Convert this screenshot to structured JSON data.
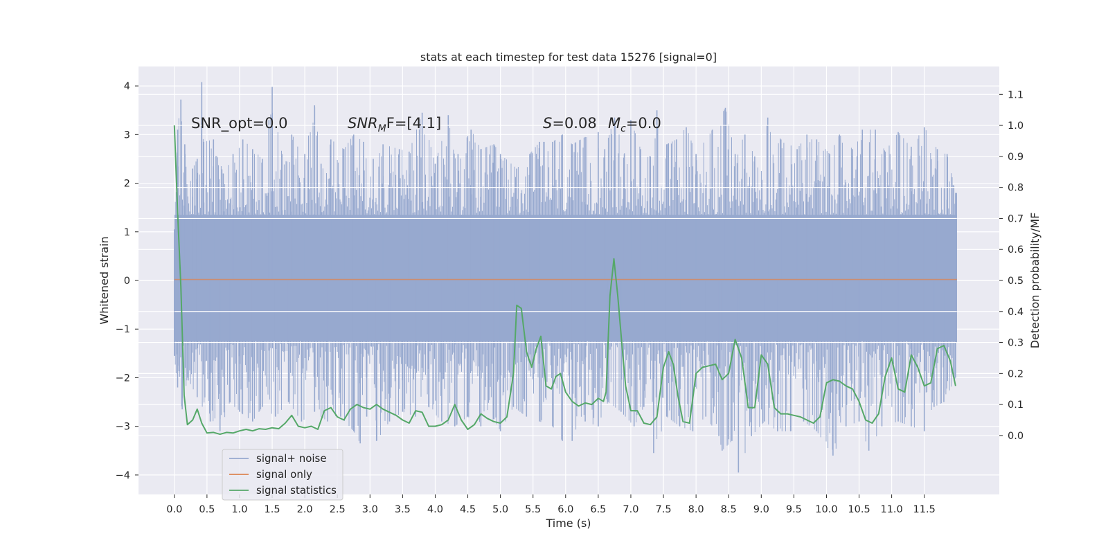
{
  "chart_data": {
    "type": "line",
    "title": "stats at each timestep for test data 15276 [signal=0]",
    "xlabel": "Time (s)",
    "ylabel": "Whitened strain",
    "y2label": "Detection probability/MF",
    "xlim": [
      -0.55,
      12.65
    ],
    "ylim": [
      -4.4,
      4.4
    ],
    "y2lim": [
      -0.19,
      1.19
    ],
    "x_ticks": [
      0.0,
      0.5,
      1.0,
      1.5,
      2.0,
      2.5,
      3.0,
      3.5,
      4.0,
      4.5,
      5.0,
      5.5,
      6.0,
      6.5,
      7.0,
      7.5,
      8.0,
      8.5,
      9.0,
      9.5,
      10.0,
      10.5,
      11.0,
      11.5
    ],
    "x_tick_labels": [
      "0.0",
      "0.5",
      "1.0",
      "1.5",
      "2.0",
      "2.5",
      "3.0",
      "3.5",
      "4.0",
      "4.5",
      "5.0",
      "5.5",
      "6.0",
      "6.5",
      "7.0",
      "7.5",
      "8.0",
      "8.5",
      "9.0",
      "9.5",
      "10.0",
      "10.5",
      "11.0",
      "11.5"
    ],
    "y_ticks": [
      4,
      3,
      2,
      1,
      0,
      -1,
      -2,
      -3,
      -4
    ],
    "y_tick_labels": [
      "4",
      "3",
      "2",
      "1",
      "0",
      "−1",
      "−2",
      "−3",
      "−4"
    ],
    "y2_ticks": [
      1.1,
      1.0,
      0.9,
      0.8,
      0.7,
      0.6,
      0.5,
      0.4,
      0.3,
      0.2,
      0.1,
      0.0
    ],
    "y2_tick_labels": [
      "1.1",
      "1.0",
      "0.9",
      "0.8",
      "0.7",
      "0.6",
      "0.5",
      "0.4",
      "0.3",
      "0.2",
      "0.1",
      "0.0"
    ],
    "colors": {
      "background": "#eaeaf2",
      "grid": "#ffffff",
      "noise": "#97a9cf",
      "signal": "#dd8452",
      "stats": "#55a868"
    },
    "annotations": {
      "snr_opt": "SNR_opt=0.0",
      "snr_mf_base": "SNR",
      "snr_mf_sub": "M",
      "snr_mf_rest": "F=[4.1]",
      "s_label": "S",
      "s_value": "=0.08",
      "mc_base": "M",
      "mc_sub": "c",
      "mc_value": "=0.0"
    },
    "legend": {
      "position": "lower-left",
      "items": [
        "signal+ noise",
        "signal only",
        "signal statistics"
      ]
    },
    "series": [
      {
        "name": "signal+ noise",
        "axis": "left",
        "type": "noise",
        "x_range": [
          0.0,
          12.0
        ],
        "upper_band": 1.35,
        "lower_band": -1.25,
        "upper_spikes": [
          [
            0.0,
            1.05
          ],
          [
            0.05,
            3.1
          ],
          [
            0.1,
            3.72
          ],
          [
            0.16,
            2.8
          ],
          [
            0.28,
            2.3
          ],
          [
            0.35,
            2.5
          ],
          [
            0.42,
            4.08
          ],
          [
            0.45,
            2.85
          ],
          [
            0.6,
            2.9
          ],
          [
            0.75,
            2.2
          ],
          [
            0.9,
            2.6
          ],
          [
            1.05,
            2.9
          ],
          [
            1.2,
            2.7
          ],
          [
            1.35,
            2.5
          ],
          [
            1.45,
            3.3
          ],
          [
            1.5,
            3.98
          ],
          [
            1.65,
            2.6
          ],
          [
            1.8,
            3.0
          ],
          [
            2.0,
            2.6
          ],
          [
            2.15,
            3.6
          ],
          [
            2.25,
            2.4
          ],
          [
            2.4,
            2.9
          ],
          [
            2.6,
            2.7
          ],
          [
            2.75,
            3.0
          ],
          [
            2.9,
            2.85
          ],
          [
            3.05,
            2.5
          ],
          [
            3.2,
            2.8
          ],
          [
            3.45,
            2.7
          ],
          [
            3.6,
            2.65
          ],
          [
            3.8,
            3.45
          ],
          [
            4.0,
            2.4
          ],
          [
            4.2,
            3.4
          ],
          [
            4.35,
            2.6
          ],
          [
            4.55,
            3.1
          ],
          [
            4.7,
            2.7
          ],
          [
            4.9,
            2.8
          ],
          [
            5.0,
            2.6
          ],
          [
            5.25,
            2.3
          ],
          [
            5.45,
            2.6
          ],
          [
            5.6,
            2.85
          ],
          [
            5.8,
            2.85
          ],
          [
            5.95,
            3.0
          ],
          [
            6.1,
            2.8
          ],
          [
            6.3,
            2.95
          ],
          [
            6.5,
            3.05
          ],
          [
            6.6,
            2.7
          ],
          [
            6.75,
            3.35
          ],
          [
            6.9,
            2.6
          ],
          [
            7.0,
            3.3
          ],
          [
            7.15,
            2.7
          ],
          [
            7.3,
            2.55
          ],
          [
            7.4,
            3.5
          ],
          [
            7.55,
            2.8
          ],
          [
            7.7,
            2.9
          ],
          [
            7.85,
            3.15
          ],
          [
            8.0,
            2.6
          ],
          [
            8.25,
            3.1
          ],
          [
            8.45,
            3.55
          ],
          [
            8.6,
            2.6
          ],
          [
            8.75,
            3.0
          ],
          [
            8.9,
            2.55
          ],
          [
            9.1,
            3.35
          ],
          [
            9.3,
            2.9
          ],
          [
            9.55,
            2.7
          ],
          [
            9.7,
            3.0
          ],
          [
            9.85,
            2.9
          ],
          [
            10.05,
            2.6
          ],
          [
            10.2,
            3.0
          ],
          [
            10.4,
            2.7
          ],
          [
            10.55,
            3.1
          ],
          [
            10.75,
            3.1
          ],
          [
            10.9,
            2.65
          ],
          [
            11.1,
            3.05
          ],
          [
            11.3,
            2.75
          ],
          [
            11.5,
            3.15
          ],
          [
            11.7,
            2.7
          ],
          [
            11.85,
            2.6
          ],
          [
            11.98,
            1.8
          ]
        ],
        "lower_spikes": [
          [
            0.0,
            -1.55
          ],
          [
            0.05,
            -2.2
          ],
          [
            0.12,
            -2.65
          ],
          [
            0.2,
            -2.0
          ],
          [
            0.35,
            -2.4
          ],
          [
            0.55,
            -2.9
          ],
          [
            0.7,
            -3.1
          ],
          [
            0.85,
            -2.5
          ],
          [
            1.0,
            -2.7
          ],
          [
            1.2,
            -2.9
          ],
          [
            1.35,
            -2.6
          ],
          [
            1.55,
            -2.8
          ],
          [
            1.75,
            -2.5
          ],
          [
            1.95,
            -2.9
          ],
          [
            2.15,
            -2.7
          ],
          [
            2.35,
            -2.9
          ],
          [
            2.55,
            -2.8
          ],
          [
            2.75,
            -3.1
          ],
          [
            2.85,
            -3.35
          ],
          [
            2.95,
            -2.8
          ],
          [
            3.1,
            -3.3
          ],
          [
            3.3,
            -2.9
          ],
          [
            3.5,
            -2.7
          ],
          [
            3.7,
            -2.8
          ],
          [
            3.9,
            -2.6
          ],
          [
            4.1,
            -2.9
          ],
          [
            4.3,
            -3.0
          ],
          [
            4.5,
            -2.8
          ],
          [
            4.7,
            -3.0
          ],
          [
            4.9,
            -2.85
          ],
          [
            5.0,
            -3.1
          ],
          [
            5.2,
            -2.6
          ],
          [
            5.4,
            -2.8
          ],
          [
            5.6,
            -2.9
          ],
          [
            5.8,
            -3.0
          ],
          [
            5.95,
            -3.3
          ],
          [
            6.1,
            -3.3
          ],
          [
            6.3,
            -2.9
          ],
          [
            6.5,
            -3.0
          ],
          [
            6.65,
            -2.5
          ],
          [
            6.85,
            -2.7
          ],
          [
            7.05,
            -3.0
          ],
          [
            7.2,
            -2.6
          ],
          [
            7.35,
            -3.55
          ],
          [
            7.55,
            -2.8
          ],
          [
            7.75,
            -3.0
          ],
          [
            7.95,
            -3.1
          ],
          [
            8.15,
            -2.8
          ],
          [
            8.35,
            -3.2
          ],
          [
            8.4,
            -3.5
          ],
          [
            8.55,
            -3.3
          ],
          [
            8.65,
            -3.95
          ],
          [
            8.85,
            -3.2
          ],
          [
            9.05,
            -2.9
          ],
          [
            9.25,
            -3.1
          ],
          [
            9.45,
            -3.1
          ],
          [
            9.65,
            -2.9
          ],
          [
            9.85,
            -3.1
          ],
          [
            10.1,
            -3.6
          ],
          [
            10.3,
            -3.0
          ],
          [
            10.5,
            -2.9
          ],
          [
            10.65,
            -3.5
          ],
          [
            10.85,
            -3.0
          ],
          [
            11.1,
            -2.9
          ],
          [
            11.3,
            -3.0
          ],
          [
            11.5,
            -3.1
          ],
          [
            11.65,
            -2.6
          ],
          [
            11.8,
            -2.5
          ],
          [
            11.98,
            -2.0
          ]
        ]
      },
      {
        "name": "signal only",
        "axis": "left",
        "x": [
          0.0,
          12.0
        ],
        "y": [
          0.02,
          0.02
        ]
      },
      {
        "name": "signal statistics",
        "axis": "right",
        "x": [
          0.0,
          0.05,
          0.1,
          0.15,
          0.2,
          0.28,
          0.35,
          0.42,
          0.5,
          0.6,
          0.7,
          0.8,
          0.9,
          1.0,
          1.1,
          1.2,
          1.3,
          1.4,
          1.5,
          1.6,
          1.7,
          1.8,
          1.9,
          2.0,
          2.1,
          2.2,
          2.3,
          2.4,
          2.5,
          2.6,
          2.7,
          2.8,
          2.9,
          3.0,
          3.1,
          3.2,
          3.3,
          3.4,
          3.5,
          3.6,
          3.7,
          3.8,
          3.9,
          4.0,
          4.1,
          4.2,
          4.3,
          4.4,
          4.5,
          4.6,
          4.7,
          4.8,
          4.9,
          5.0,
          5.1,
          5.2,
          5.25,
          5.32,
          5.4,
          5.48,
          5.55,
          5.62,
          5.7,
          5.78,
          5.85,
          5.92,
          6.0,
          6.1,
          6.2,
          6.3,
          6.4,
          6.5,
          6.58,
          6.62,
          6.68,
          6.74,
          6.8,
          6.86,
          6.92,
          7.0,
          7.1,
          7.2,
          7.3,
          7.4,
          7.5,
          7.58,
          7.65,
          7.72,
          7.8,
          7.9,
          8.0,
          8.1,
          8.2,
          8.3,
          8.4,
          8.5,
          8.6,
          8.7,
          8.8,
          8.9,
          9.0,
          9.1,
          9.2,
          9.3,
          9.4,
          9.5,
          9.6,
          9.7,
          9.8,
          9.9,
          10.0,
          10.1,
          10.2,
          10.3,
          10.4,
          10.5,
          10.6,
          10.7,
          10.8,
          10.9,
          11.0,
          11.1,
          11.2,
          11.3,
          11.4,
          11.5,
          11.6,
          11.7,
          11.8,
          11.9,
          11.98
        ],
        "y": [
          1.0,
          0.72,
          0.48,
          0.13,
          0.035,
          0.05,
          0.085,
          0.04,
          0.008,
          0.01,
          0.004,
          0.01,
          0.008,
          0.015,
          0.02,
          0.015,
          0.022,
          0.02,
          0.025,
          0.022,
          0.04,
          0.065,
          0.03,
          0.025,
          0.03,
          0.02,
          0.08,
          0.09,
          0.06,
          0.05,
          0.085,
          0.1,
          0.09,
          0.085,
          0.1,
          0.085,
          0.075,
          0.065,
          0.05,
          0.04,
          0.08,
          0.075,
          0.03,
          0.03,
          0.035,
          0.05,
          0.1,
          0.05,
          0.02,
          0.035,
          0.07,
          0.055,
          0.045,
          0.04,
          0.06,
          0.2,
          0.42,
          0.41,
          0.27,
          0.22,
          0.28,
          0.32,
          0.16,
          0.15,
          0.19,
          0.2,
          0.14,
          0.11,
          0.095,
          0.105,
          0.1,
          0.12,
          0.11,
          0.14,
          0.45,
          0.57,
          0.45,
          0.3,
          0.16,
          0.08,
          0.08,
          0.04,
          0.035,
          0.06,
          0.22,
          0.27,
          0.23,
          0.13,
          0.045,
          0.04,
          0.2,
          0.22,
          0.225,
          0.23,
          0.18,
          0.2,
          0.31,
          0.25,
          0.09,
          0.09,
          0.26,
          0.23,
          0.09,
          0.07,
          0.07,
          0.065,
          0.06,
          0.05,
          0.04,
          0.06,
          0.17,
          0.18,
          0.175,
          0.16,
          0.15,
          0.11,
          0.05,
          0.04,
          0.07,
          0.19,
          0.25,
          0.15,
          0.14,
          0.26,
          0.22,
          0.16,
          0.17,
          0.28,
          0.29,
          0.24,
          0.16
        ]
      }
    ]
  }
}
